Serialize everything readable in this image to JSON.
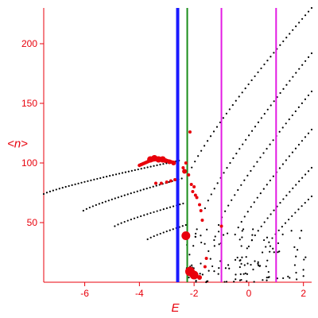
{
  "chart_data": {
    "type": "scatter",
    "xlabel": "E",
    "ylabel": "<n>",
    "xlim": [
      -7.5,
      2.3
    ],
    "ylim": [
      0,
      230
    ],
    "xticks": [
      -6,
      -4,
      -2,
      0,
      2
    ],
    "yticks": [
      50,
      100,
      150,
      200
    ],
    "grid": false,
    "legend": "none",
    "colors": {
      "axes": "#e8000b",
      "spectrum_points": "#000000",
      "highlight_points": "#e8000b",
      "line_blue": "#1a1aff",
      "line_green": "#1a8c1a",
      "line_magenta": "#e31ae3"
    },
    "vertical_lines": [
      {
        "x": -2.6,
        "color": "#1a1aff",
        "width": "thick"
      },
      {
        "x": -2.25,
        "color": "#1a8c1a",
        "width": "thin"
      },
      {
        "x": -1.0,
        "color": "#e31ae3",
        "width": "thin"
      },
      {
        "x": 1.0,
        "color": "#e31ae3",
        "width": "thin"
      }
    ],
    "bands": [
      {
        "x_start": -7.5,
        "x_end": -2.55,
        "n_start": 74,
        "n_end": 102
      },
      {
        "x_start": -6.05,
        "x_end": -2.45,
        "n_start": 60,
        "n_end": 87
      },
      {
        "x_start": -4.9,
        "x_end": -2.4,
        "n_start": 47,
        "n_end": 66
      },
      {
        "x_start": -3.7,
        "x_end": -2.3,
        "n_start": 36,
        "n_end": 48
      },
      {
        "x_start": -2.2,
        "x_end": 2.3,
        "n_start": 90,
        "n_end": 230
      },
      {
        "x_start": -1.6,
        "x_end": 2.3,
        "n_start": 62,
        "n_end": 192
      },
      {
        "x_start": -1.1,
        "x_end": 2.3,
        "n_start": 48,
        "n_end": 160
      },
      {
        "x_start": -0.5,
        "x_end": 2.3,
        "n_start": 40,
        "n_end": 128
      },
      {
        "x_start": 0.0,
        "x_end": 2.3,
        "n_start": 30,
        "n_end": 96
      },
      {
        "x_start": 0.5,
        "x_end": 2.3,
        "n_start": 25,
        "n_end": 72
      }
    ],
    "scattered_points_count": 120,
    "scatter_region": {
      "x": [
        -2.3,
        2.2
      ],
      "n": [
        0,
        45
      ]
    },
    "highlight_arc": [
      {
        "x": -4.0,
        "n": 98
      },
      {
        "x": -3.8,
        "n": 100
      },
      {
        "x": -3.6,
        "n": 102
      },
      {
        "x": -3.4,
        "n": 103
      },
      {
        "x": -3.2,
        "n": 103
      },
      {
        "x": -3.0,
        "n": 102
      },
      {
        "x": -2.85,
        "n": 101
      },
      {
        "x": -2.7,
        "n": 100
      }
    ],
    "highlight_points": [
      {
        "x": -3.6,
        "n": 103,
        "size": 4
      },
      {
        "x": -3.45,
        "n": 104,
        "size": 4
      },
      {
        "x": -3.3,
        "n": 103,
        "size": 4
      },
      {
        "x": -3.15,
        "n": 103,
        "size": 4
      },
      {
        "x": -3.05,
        "n": 102,
        "size": 3
      },
      {
        "x": -2.9,
        "n": 101,
        "size": 3
      },
      {
        "x": -2.75,
        "n": 100,
        "size": 3
      },
      {
        "x": -3.4,
        "n": 83,
        "size": 2
      },
      {
        "x": -3.2,
        "n": 83,
        "size": 2
      },
      {
        "x": -3.0,
        "n": 84,
        "size": 2
      },
      {
        "x": -2.85,
        "n": 85,
        "size": 2
      },
      {
        "x": -2.7,
        "n": 86,
        "size": 2
      },
      {
        "x": -2.3,
        "n": 100,
        "size": 2
      },
      {
        "x": -2.4,
        "n": 96,
        "size": 2
      },
      {
        "x": -2.35,
        "n": 93,
        "size": 3
      },
      {
        "x": -2.2,
        "n": 90,
        "size": 2
      },
      {
        "x": -2.1,
        "n": 82,
        "size": 2
      },
      {
        "x": -2.0,
        "n": 80,
        "size": 2
      },
      {
        "x": -2.05,
        "n": 76,
        "size": 2
      },
      {
        "x": -1.95,
        "n": 73,
        "size": 2
      },
      {
        "x": -1.9,
        "n": 71,
        "size": 2
      },
      {
        "x": -1.8,
        "n": 65,
        "size": 2
      },
      {
        "x": -1.75,
        "n": 60,
        "size": 2
      },
      {
        "x": -1.7,
        "n": 52,
        "size": 2
      },
      {
        "x": -2.15,
        "n": 126,
        "size": 2
      },
      {
        "x": -2.3,
        "n": 39,
        "size": 5.5
      },
      {
        "x": -2.15,
        "n": 9,
        "size": 6
      },
      {
        "x": -2.0,
        "n": 6,
        "size": 5.5
      },
      {
        "x": -1.8,
        "n": 4,
        "size": 3
      },
      {
        "x": -1.6,
        "n": 13,
        "size": 2
      },
      {
        "x": -1.55,
        "n": 20,
        "size": 2
      },
      {
        "x": -1.0,
        "n": 47,
        "size": 2
      }
    ]
  }
}
